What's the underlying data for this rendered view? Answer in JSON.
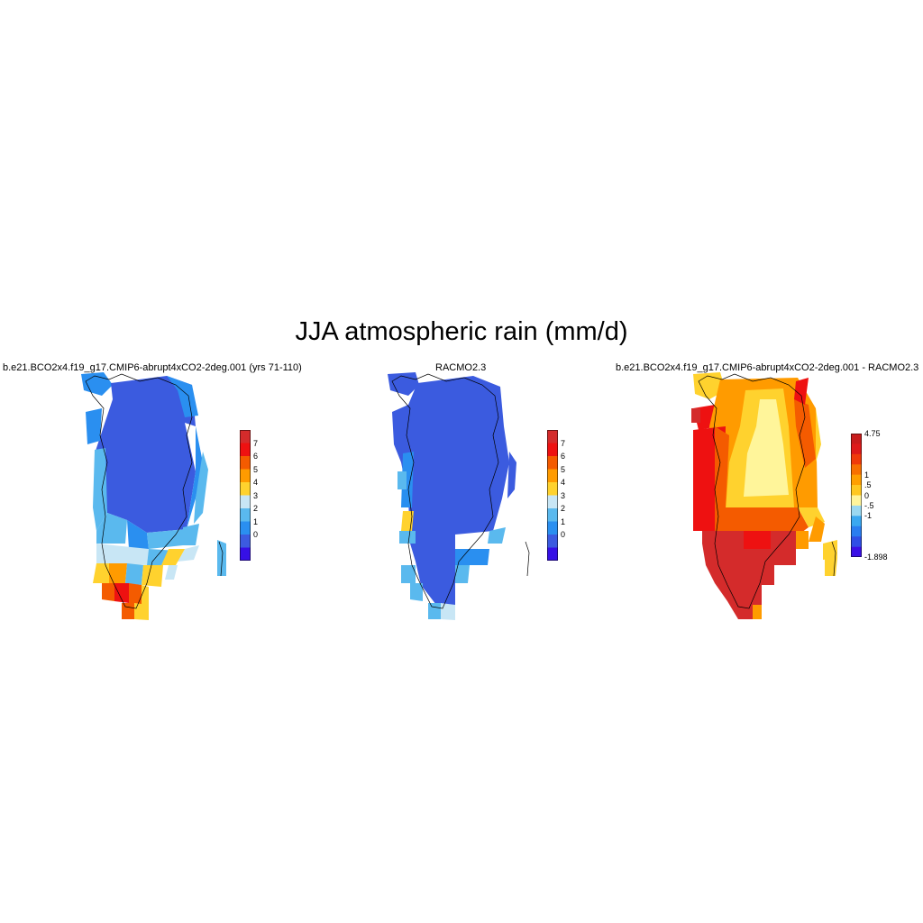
{
  "title": "JJA atmospheric rain (mm/d)",
  "panels": [
    {
      "id": "model",
      "title": "b.e21.BCO2x4.f19_g17.CMIP6-abrupt4xCO2-2deg.001 (yrs 71-110)",
      "colorbar": {
        "labels": [
          "7",
          "6",
          "5",
          "4",
          "3",
          "2",
          "1",
          "0"
        ],
        "colors": [
          "#d42b2b",
          "#ee1111",
          "#f45b00",
          "#ff9b00",
          "#ffd22e",
          "#c8e6f5",
          "#5ab9ee",
          "#2a8ff0",
          "#3c5be0",
          "#3610e6"
        ]
      }
    },
    {
      "id": "racmo",
      "title": "RACMO2.3",
      "colorbar": {
        "labels": [
          "7",
          "6",
          "5",
          "4",
          "3",
          "2",
          "1",
          "0"
        ],
        "colors": [
          "#d42b2b",
          "#ee1111",
          "#f45b00",
          "#ff9b00",
          "#ffd22e",
          "#c8e6f5",
          "#5ab9ee",
          "#2a8ff0",
          "#3c5be0",
          "#3610e6"
        ]
      }
    },
    {
      "id": "diff",
      "title": "b.e21.BCO2x4.f19_g17.CMIP6-abrupt4xCO2-2deg.001 - RACMO2.3",
      "colorbar": {
        "labels": [
          "4.75",
          "1",
          ".5",
          "0",
          "-.5",
          "-1",
          "-1.898"
        ],
        "colors": [
          "#c81c1c",
          "#de1a1a",
          "#f03a0a",
          "#f87000",
          "#ff9f00",
          "#ffc820",
          "#fff59a",
          "#9ad8f0",
          "#3aa8f0",
          "#2a7ef0",
          "#2f4fe6",
          "#3a10e6"
        ]
      }
    }
  ],
  "palette": {
    "dark_blue": "#3b5bdf",
    "mid_blue": "#2a8ff0",
    "light_blue": "#5ab9ee",
    "pale_blue": "#c8e6f5",
    "yellow": "#ffd22e",
    "orange": "#ff9b00",
    "red_orange": "#f45b00",
    "red": "#ee1111",
    "dark_red": "#d42b2b",
    "pale_yellow": "#fff59a"
  }
}
